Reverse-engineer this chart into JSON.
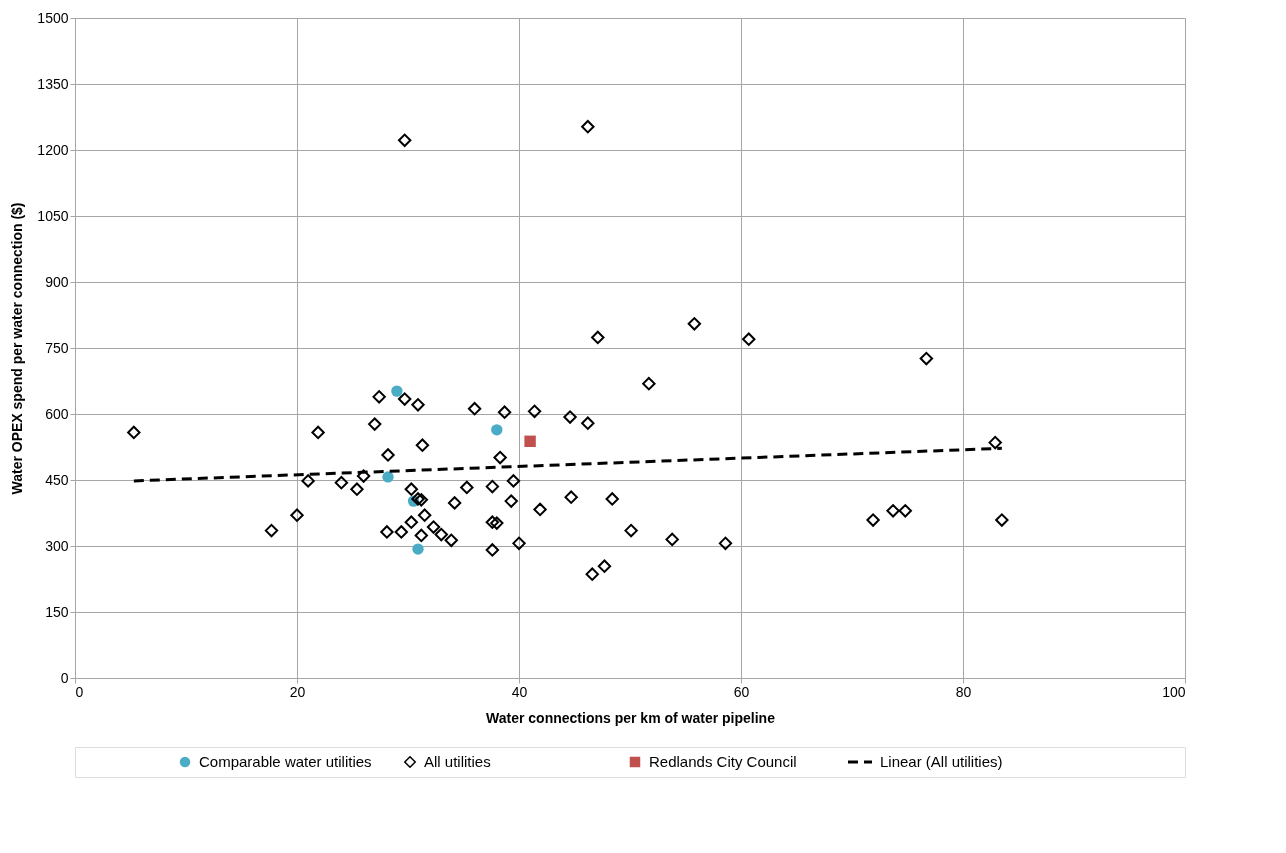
{
  "chart_data": {
    "type": "scatter",
    "xlabel": "Water connections per km of water pipeline",
    "ylabel": "Water OPEX spend per water connection ($)",
    "xlim": [
      0,
      100
    ],
    "xticks": [
      0,
      20,
      40,
      60,
      80,
      100
    ],
    "ylim": [
      0,
      1500
    ],
    "yticks": [
      0,
      150,
      300,
      450,
      600,
      750,
      900,
      1050,
      1200,
      1350,
      1500
    ],
    "grid": true,
    "legend": "bottom",
    "series": [
      {
        "name": "Comparable water utilities",
        "color": "#4bacc6",
        "marker": "circle",
        "x": [
          29.0,
          28.2,
          30.5,
          30.9,
          38.0
        ],
        "values": [
          652,
          457,
          402,
          293,
          564
        ]
      },
      {
        "name": "All utilities",
        "color": "#000000",
        "marker": "diamond",
        "x": [
          5.3,
          17.7,
          20.0,
          21.0,
          21.9,
          24.0,
          25.4,
          26.0,
          27.0,
          27.4,
          28.1,
          28.2,
          29.4,
          29.7,
          29.7,
          30.3,
          30.3,
          30.9,
          30.9,
          31.2,
          31.3,
          31.5,
          31.2,
          32.3,
          33.0,
          33.9,
          34.2,
          35.3,
          36.0,
          37.6,
          37.6,
          37.6,
          38.0,
          38.3,
          38.7,
          39.3,
          39.5,
          40.0,
          41.4,
          41.9,
          44.6,
          44.7,
          46.2,
          46.2,
          46.6,
          47.1,
          47.7,
          48.4,
          50.1,
          51.7,
          53.8,
          55.8,
          58.6,
          60.7,
          71.9,
          73.7,
          74.8,
          76.7,
          82.9,
          83.5
        ],
        "values": [
          558,
          335,
          370,
          448,
          558,
          444,
          429,
          459,
          577,
          639,
          332,
          507,
          332,
          634,
          1222,
          429,
          354,
          621,
          407,
          324,
          529,
          370,
          405,
          343,
          326,
          313,
          398,
          433,
          612,
          291,
          435,
          354,
          352,
          501,
          604,
          402,
          448,
          306,
          606,
          383,
          593,
          411,
          579,
          1253,
          236,
          774,
          254,
          407,
          335,
          669,
          315,
          805,
          306,
          770,
          359,
          380,
          380,
          726,
          535,
          359
        ]
      },
      {
        "name": "Redlands City Council",
        "color": "#c0504d",
        "marker": "square",
        "x": [
          41.0
        ],
        "values": [
          538
        ]
      },
      {
        "name": "Linear (All utilities)",
        "type": "line",
        "line_style": "dashed",
        "color": "#000000",
        "x": [
          5.3,
          83.5
        ],
        "values": [
          448,
          522
        ]
      }
    ]
  }
}
